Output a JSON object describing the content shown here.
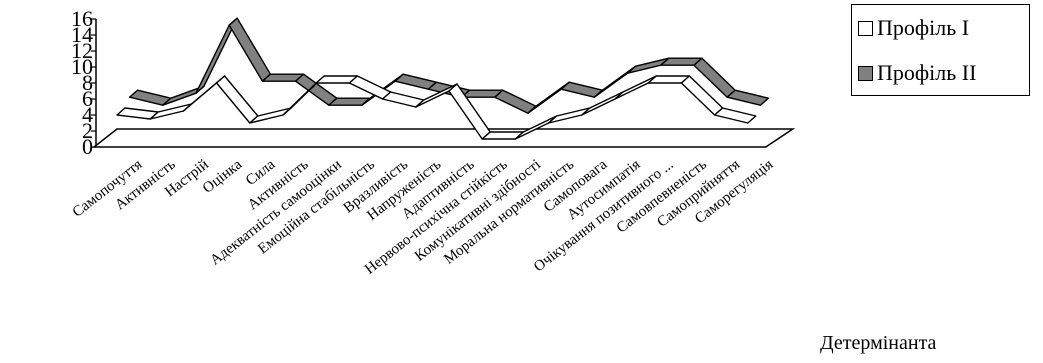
{
  "chart_data": {
    "type": "line",
    "style": "3d-ribbon",
    "xlabel": "Детермінанта",
    "ylim": [
      0,
      16
    ],
    "yticks": [
      0,
      2,
      4,
      6,
      8,
      10,
      12,
      14,
      16
    ],
    "categories": [
      "Самопочуття",
      "Активність",
      "Настрій",
      "Оцінка",
      "Сила",
      "Активність",
      "Адекватність самооцінки",
      "Емоційна стабільність",
      "Вразливість",
      "Напруженість",
      "Адаптивність",
      "Нервово-психічна стійкість",
      "Комунікативні здібності",
      "Моральна нормативність",
      "Самоповага",
      "Аутосимпатія",
      "Очікування позитивного ...",
      "Самовпевненість",
      "Самоприйняття",
      "Саморегуляція"
    ],
    "series": [
      {
        "name": "Профіль І",
        "color": "#ffffff",
        "values": [
          4,
          3.5,
          4.5,
          8,
          3,
          4,
          8,
          8,
          6,
          5,
          7,
          1,
          1,
          3,
          4,
          6,
          8,
          8,
          4,
          3
        ]
      },
      {
        "name": "Профіль ІІ",
        "color": "#808080",
        "values": [
          6,
          5,
          6.5,
          15,
          8,
          8,
          5,
          5,
          8,
          7,
          6,
          6,
          4,
          7,
          6,
          9,
          10,
          10,
          6,
          5
        ]
      }
    ],
    "legend": "top-right"
  }
}
